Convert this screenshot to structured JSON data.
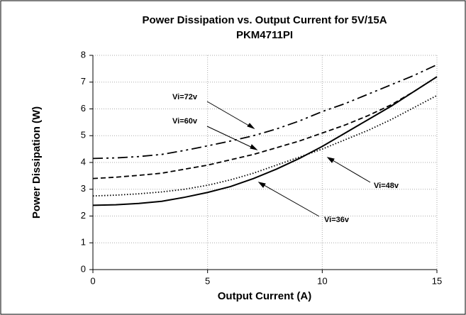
{
  "chart_data": {
    "type": "line",
    "title": "Power Dissipation vs. Output Current for 5V/15A",
    "subtitle": "PKM4711PI",
    "x_label": "Output Current (A)",
    "y_label": "Power Dissipation (W)",
    "x": [
      0,
      1,
      2,
      3,
      4,
      5,
      6,
      7,
      8,
      9,
      10,
      11,
      12,
      13,
      14,
      15
    ],
    "series": [
      {
        "name": "Vi=36v",
        "color": "#000000",
        "dash": "solid",
        "values": [
          2.4,
          2.42,
          2.47,
          2.55,
          2.7,
          2.88,
          3.1,
          3.4,
          3.75,
          4.15,
          4.6,
          5.1,
          5.6,
          6.1,
          6.65,
          7.2
        ]
      },
      {
        "name": "Vi=48v",
        "color": "#000000",
        "dash": "dotted",
        "values": [
          2.75,
          2.78,
          2.83,
          2.9,
          3.0,
          3.15,
          3.35,
          3.6,
          3.9,
          4.2,
          4.5,
          4.85,
          5.2,
          5.6,
          6.05,
          6.5
        ]
      },
      {
        "name": "Vi=60v",
        "color": "#000000",
        "dash": "dashed",
        "values": [
          3.4,
          3.45,
          3.52,
          3.6,
          3.75,
          3.9,
          4.1,
          4.3,
          4.55,
          4.8,
          5.1,
          5.4,
          5.75,
          6.15,
          6.65,
          7.2
        ]
      },
      {
        "name": "Vi=72v",
        "color": "#000000",
        "dash": "dashdot",
        "values": [
          4.15,
          4.17,
          4.22,
          4.3,
          4.45,
          4.62,
          4.8,
          5.0,
          5.25,
          5.55,
          5.9,
          6.2,
          6.55,
          6.9,
          7.25,
          7.65
        ]
      }
    ],
    "xlim": [
      0,
      15
    ],
    "xticks": [
      0,
      5,
      10,
      15
    ],
    "ylim": [
      0,
      8
    ],
    "yticks": [
      0,
      1,
      2,
      3,
      4,
      5,
      6,
      7,
      8
    ],
    "grid": true
  }
}
